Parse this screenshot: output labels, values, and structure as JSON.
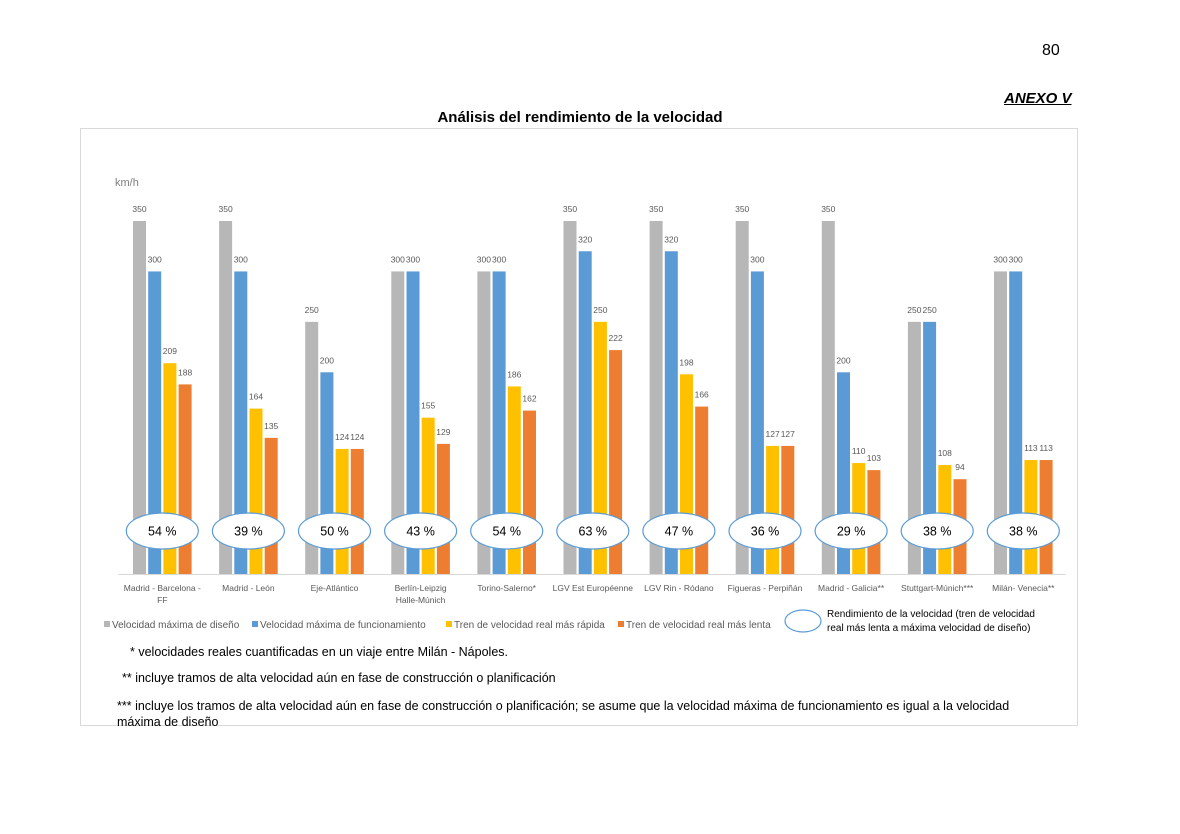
{
  "page_number": "80",
  "annex_title": "ANEXO V",
  "chart_data": {
    "type": "bar",
    "title": "Análisis del rendimiento de la velocidad",
    "ylabel": "km/h",
    "ylim": [
      0,
      350
    ],
    "grid": false,
    "legend_position": "bottom",
    "categories": [
      [
        "Madrid - Barcelona -",
        "FF"
      ],
      [
        "Madrid - León"
      ],
      [
        "Eje-Atlántico"
      ],
      [
        "Berlín-Leipzig",
        "Halle-Múnich"
      ],
      [
        "Torino-Salerno*"
      ],
      [
        "LGV Est Européenne"
      ],
      [
        "LGV Rin - Ródano"
      ],
      [
        "Figueras - Perpiñán"
      ],
      [
        "Madrid - Galicia**"
      ],
      [
        "Stuttgart-Múnich***"
      ],
      [
        "Milán- Venecia**"
      ]
    ],
    "series": [
      {
        "name": "Velocidad máxima de diseño",
        "color": "#b7b7b7",
        "values": [
          350,
          350,
          250,
          300,
          300,
          350,
          350,
          350,
          350,
          250,
          300
        ]
      },
      {
        "name": "Velocidad máxima de funcionamiento",
        "color": "#5b9bd5",
        "values": [
          300,
          300,
          200,
          300,
          300,
          320,
          320,
          300,
          200,
          250,
          300
        ]
      },
      {
        "name": "Tren de velocidad real más rápida",
        "color": "#ffc000",
        "values": [
          209,
          164,
          124,
          155,
          186,
          250,
          198,
          127,
          110,
          108,
          113
        ]
      },
      {
        "name": "Tren de velocidad real más lenta",
        "color": "#ed7d31",
        "values": [
          188,
          135,
          124,
          129,
          162,
          222,
          166,
          127,
          103,
          94,
          113
        ]
      }
    ],
    "performance": [
      "54 %",
      "39 %",
      "50 %",
      "43 %",
      "54 %",
      "63 %",
      "47 %",
      "36 %",
      "29 %",
      "38 %",
      "38 %"
    ],
    "performance_legend": [
      "Rendimiento de la velocidad (tren de velocidad",
      "real más lenta a máxima velocidad de diseño)"
    ]
  },
  "notes": [
    "* velocidades reales cuantificadas en un viaje entre Milán - Nápoles.",
    "** incluye tramos de alta velocidad aún en fase de construcción o planificación",
    "*** incluye los tramos de alta velocidad aún en fase de construcción o planificación; se asume que la velocidad máxima de funcionamiento es igual a la velocidad máxima de diseño"
  ]
}
